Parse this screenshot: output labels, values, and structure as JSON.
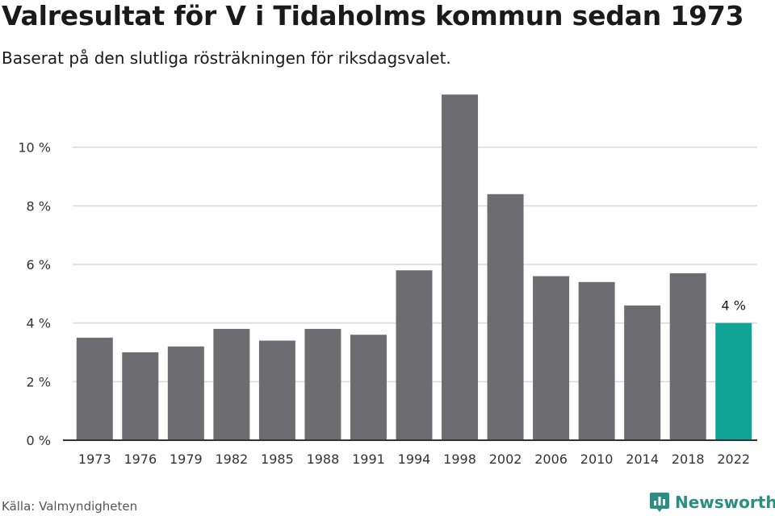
{
  "title": "Valresultat för V i Tidaholms kommun sedan 1973",
  "subtitle": "Baserat på den slutliga rösträkningen för riksdagsvalet.",
  "source": "Källa: Valmyndigheten",
  "brand": {
    "name": "Newsworthy",
    "logo_icon": "newsworthy-logo-icon",
    "color": "#2a8f82"
  },
  "chart_data": {
    "type": "bar",
    "title": "Valresultat för V i Tidaholms kommun sedan 1973",
    "xlabel": "",
    "ylabel": "",
    "categories": [
      "1973",
      "1976",
      "1979",
      "1982",
      "1985",
      "1988",
      "1991",
      "1994",
      "1998",
      "2002",
      "2006",
      "2010",
      "2014",
      "2018",
      "2022"
    ],
    "values": [
      3.5,
      3.0,
      3.2,
      3.8,
      3.4,
      3.8,
      3.6,
      5.8,
      11.8,
      8.4,
      5.6,
      5.4,
      4.6,
      5.7,
      4.0
    ],
    "ylim": [
      0,
      12
    ],
    "yticks": [
      0,
      2,
      4,
      6,
      8,
      10
    ],
    "ytick_suffix": " %",
    "grid": true,
    "colors": {
      "default": "#6d6c71",
      "highlight": "#0fa596",
      "grid": "#d9d9d9",
      "axis": "#333333"
    },
    "highlight_index": 14,
    "annotations": [
      {
        "category": "2022",
        "text": "4 %"
      }
    ]
  }
}
